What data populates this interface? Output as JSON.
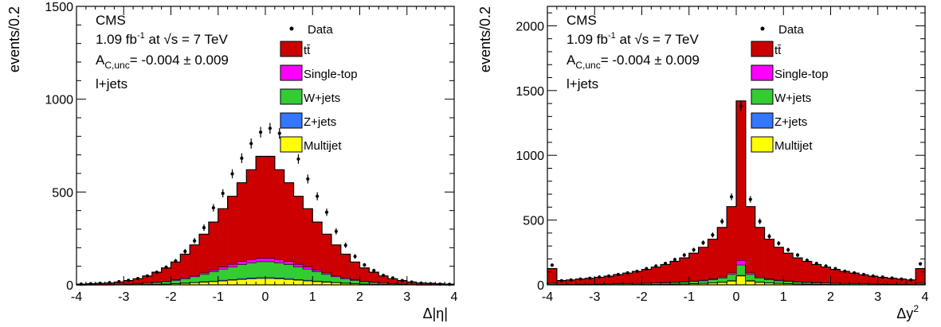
{
  "chart_data": [
    {
      "type": "bar",
      "stacked": true,
      "ylabel": "events/0.2",
      "xlabel": "Δ|η|",
      "xlim": [
        -4,
        4
      ],
      "ylim": [
        0,
        1500
      ],
      "xticks": [
        "-4",
        "-3",
        "-2",
        "-1",
        "0",
        "1",
        "2",
        "3",
        "4"
      ],
      "yticks": [
        "0",
        "500",
        "1000",
        "1500"
      ],
      "annotations": {
        "experiment": "CMS",
        "lumi_prefix": "1.09 fb",
        "lumi_exp": "-1",
        "lumi_at": " at ",
        "energy": "s = 7 TeV",
        "asym_sym": "A",
        "asym_sub": "C,unc",
        "asym_val": "= -0.004 ± 0.009",
        "channel": "l+jets"
      },
      "legend": {
        "position": "top-right",
        "data_label": "Data"
      },
      "bin_edges_start": -4.0,
      "bin_width": 0.2,
      "series": [
        {
          "name": "Multijet",
          "color": "#ffff00",
          "values": [
            0,
            0,
            0,
            0,
            1,
            1,
            2,
            3,
            4,
            5,
            7,
            9,
            12,
            15,
            18,
            22,
            26,
            30,
            33,
            35,
            35,
            33,
            30,
            26,
            22,
            18,
            15,
            12,
            9,
            7,
            5,
            4,
            3,
            2,
            1,
            1,
            0,
            0,
            0,
            0
          ]
        },
        {
          "name": "Z+jets",
          "color": "#3377ff",
          "values": [
            0,
            0,
            0,
            0,
            0,
            0,
            0,
            1,
            1,
            1,
            1,
            2,
            2,
            3,
            3,
            4,
            4,
            5,
            5,
            5,
            5,
            5,
            5,
            4,
            4,
            3,
            3,
            2,
            2,
            1,
            1,
            1,
            1,
            0,
            0,
            0,
            0,
            0,
            0,
            0
          ]
        },
        {
          "name": "W+jets",
          "color": "#33cc33",
          "values": [
            0,
            1,
            1,
            1,
            2,
            3,
            4,
            6,
            9,
            12,
            17,
            23,
            31,
            40,
            50,
            60,
            68,
            76,
            82,
            86,
            86,
            82,
            76,
            68,
            60,
            50,
            40,
            31,
            23,
            17,
            12,
            9,
            6,
            4,
            3,
            2,
            1,
            1,
            1,
            0
          ]
        },
        {
          "name": "Single-top",
          "color": "#ff00ff",
          "values": [
            0,
            0,
            0,
            0,
            0,
            1,
            1,
            1,
            2,
            3,
            4,
            5,
            6,
            8,
            10,
            12,
            14,
            16,
            17,
            18,
            18,
            17,
            16,
            14,
            12,
            10,
            8,
            6,
            5,
            4,
            3,
            2,
            1,
            1,
            1,
            0,
            0,
            0,
            0,
            0
          ]
        },
        {
          "name": "tt̄",
          "color": "#cc0000",
          "values": [
            4,
            5,
            7,
            9,
            12,
            18,
            26,
            37,
            52,
            70,
            94,
            126,
            164,
            207,
            257,
            312,
            365,
            423,
            483,
            548,
            548,
            483,
            423,
            365,
            312,
            257,
            207,
            164,
            126,
            94,
            70,
            52,
            37,
            26,
            18,
            12,
            9,
            7,
            5,
            4
          ]
        }
      ],
      "data": {
        "name": "Data",
        "values": [
          4,
          6,
          8,
          12,
          17,
          24,
          34,
          48,
          68,
          95,
          128,
          180,
          237,
          308,
          415,
          493,
          598,
          682,
          761,
          822,
          843,
          816,
          750,
          678,
          570,
          477,
          391,
          288,
          213,
          153,
          107,
          77,
          51,
          37,
          23,
          15,
          9,
          6,
          4,
          3
        ]
      }
    },
    {
      "type": "bar",
      "stacked": true,
      "ylabel": "events/0.2",
      "xlabel": "Δy",
      "xlabel_sup": "2",
      "xlim": [
        -4,
        4
      ],
      "ylim": [
        0,
        2150
      ],
      "xticks": [
        "-4",
        "-3",
        "-2",
        "-1",
        "0",
        "1",
        "2",
        "3",
        "4"
      ],
      "yticks": [
        "0",
        "500",
        "1000",
        "1500",
        "2000"
      ],
      "annotations": {
        "experiment": "CMS",
        "lumi_prefix": "1.09 fb",
        "lumi_exp": "-1",
        "lumi_at": " at ",
        "energy": "s = 7 TeV",
        "asym_sym": "A",
        "asym_sub": "C,unc",
        "asym_val": "= -0.004 ± 0.009",
        "channel": "l+jets"
      },
      "legend": {
        "position": "top-right",
        "data_label": "Data"
      },
      "bin_edges_start": -4.0,
      "bin_width": 0.2,
      "series": [
        {
          "name": "Multijet",
          "color": "#ffff00",
          "values": [
            4,
            1,
            1,
            2,
            2,
            2,
            3,
            3,
            3,
            4,
            4,
            5,
            6,
            7,
            8,
            10,
            12,
            15,
            20,
            30,
            70,
            30,
            20,
            15,
            12,
            10,
            8,
            7,
            6,
            5,
            4,
            4,
            3,
            3,
            3,
            2,
            2,
            2,
            1,
            4
          ]
        },
        {
          "name": "Z+jets",
          "color": "#3377ff",
          "values": [
            1,
            0,
            0,
            0,
            0,
            0,
            0,
            1,
            1,
            1,
            1,
            1,
            1,
            1,
            1,
            2,
            2,
            2,
            3,
            4,
            5,
            4,
            3,
            2,
            2,
            2,
            1,
            1,
            1,
            1,
            1,
            1,
            1,
            0,
            0,
            0,
            0,
            0,
            0,
            1
          ]
        },
        {
          "name": "W+jets",
          "color": "#33cc33",
          "values": [
            8,
            3,
            3,
            4,
            4,
            5,
            5,
            6,
            7,
            7,
            8,
            9,
            10,
            12,
            14,
            16,
            19,
            24,
            32,
            48,
            80,
            48,
            32,
            24,
            19,
            16,
            14,
            12,
            10,
            9,
            8,
            7,
            7,
            6,
            5,
            5,
            4,
            4,
            3,
            8
          ]
        },
        {
          "name": "Single-top",
          "color": "#ff00ff",
          "values": [
            2,
            1,
            1,
            1,
            1,
            1,
            1,
            1,
            2,
            2,
            2,
            2,
            3,
            3,
            3,
            4,
            5,
            6,
            8,
            12,
            35,
            12,
            8,
            6,
            5,
            4,
            3,
            3,
            3,
            2,
            2,
            2,
            2,
            1,
            1,
            1,
            1,
            1,
            1,
            2
          ]
        },
        {
          "name": "tt̄",
          "color": "#cc0000",
          "values": [
            110,
            28,
            33,
            38,
            44,
            50,
            58,
            68,
            78,
            90,
            104,
            120,
            137,
            158,
            182,
            212,
            252,
            305,
            380,
            510,
            1230,
            510,
            380,
            305,
            252,
            212,
            182,
            158,
            137,
            120,
            104,
            90,
            78,
            68,
            58,
            50,
            44,
            38,
            33,
            110
          ]
        }
      ],
      "data": {
        "name": "Data",
        "values": [
          152,
          32,
          38,
          45,
          51,
          60,
          68,
          80,
          92,
          104,
          125,
          145,
          165,
          195,
          230,
          270,
          325,
          385,
          490,
          680,
          1380,
          660,
          490,
          375,
          320,
          270,
          230,
          190,
          165,
          145,
          125,
          105,
          92,
          80,
          68,
          60,
          52,
          45,
          38,
          162
        ]
      }
    }
  ]
}
